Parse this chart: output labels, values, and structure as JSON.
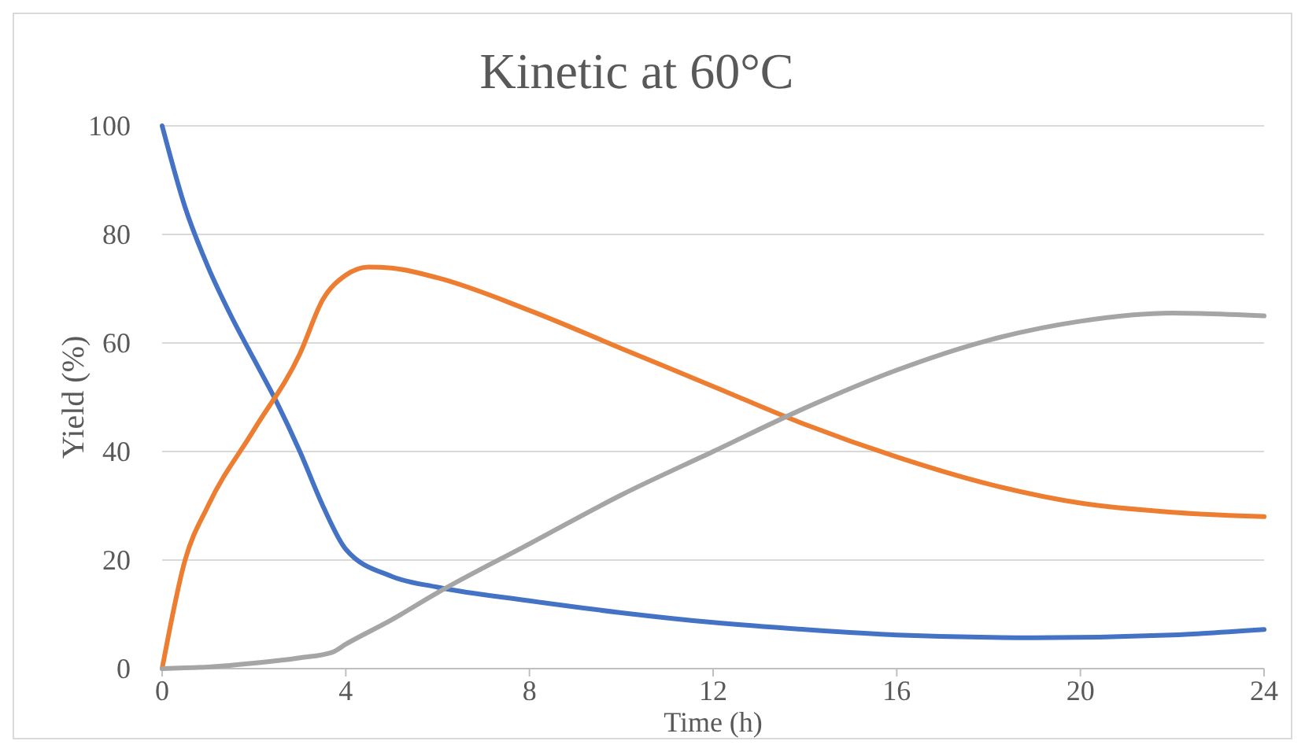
{
  "chart_data": {
    "type": "line",
    "title": "Kinetic at 60°C",
    "xlabel": "Time (h)",
    "ylabel": "Yield (%)",
    "xlim": [
      0,
      24
    ],
    "xticks": [
      0,
      4,
      8,
      12,
      16,
      20,
      24
    ],
    "ylim": [
      0,
      100
    ],
    "yticks": [
      0,
      20,
      40,
      60,
      80,
      100
    ],
    "grid": "y",
    "series": [
      {
        "color": "#4472c4",
        "x": [
          0,
          0.5,
          1,
          1.5,
          2,
          2.5,
          3,
          3.5,
          4,
          5,
          6,
          8,
          10,
          12,
          14,
          16,
          19,
          22,
          24
        ],
        "values": [
          100,
          85,
          74,
          65,
          57,
          49,
          40,
          30,
          22,
          17,
          15,
          12.5,
          10.3,
          8.5,
          7.2,
          6.2,
          5.7,
          6.2,
          7.2
        ]
      },
      {
        "color": "#ed7d31",
        "x": [
          0,
          0.5,
          1,
          2,
          3,
          3.5,
          4,
          4.5,
          5,
          6,
          8,
          10,
          12,
          14,
          16,
          18,
          20,
          22,
          24
        ],
        "values": [
          0,
          20,
          30,
          44,
          58,
          68,
          72.5,
          74,
          73.8,
          72,
          66,
          59,
          52,
          45,
          39,
          34,
          30.5,
          28.8,
          28
        ]
      },
      {
        "color": "#a5a5a5",
        "x": [
          0,
          1,
          2,
          3,
          3.7,
          4,
          5,
          6,
          8,
          10,
          12,
          14,
          16,
          18,
          20,
          22,
          24
        ],
        "values": [
          0,
          0.3,
          1,
          2,
          3,
          4.5,
          9,
          14,
          23,
          32,
          40,
          48,
          55,
          60.5,
          64,
          65.5,
          65
        ]
      }
    ]
  }
}
